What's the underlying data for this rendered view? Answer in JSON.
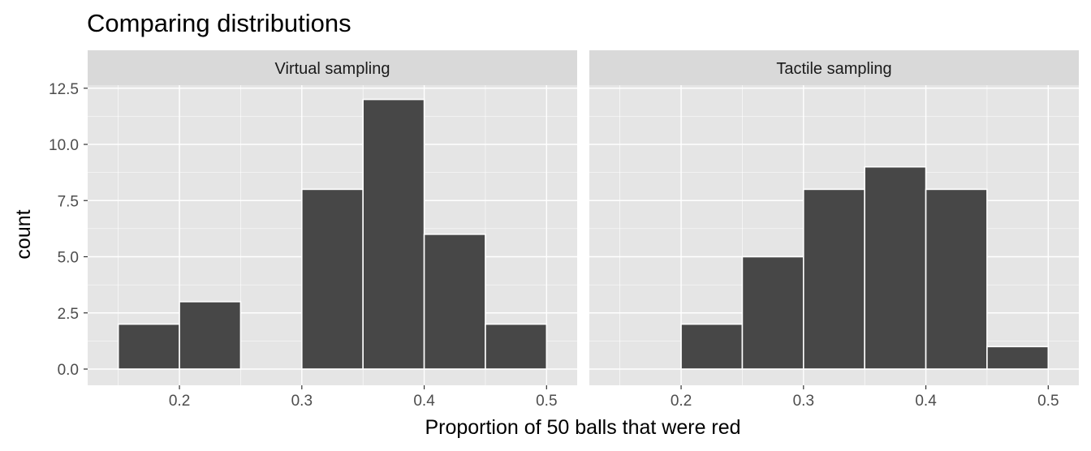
{
  "chart_data": {
    "type": "bar",
    "title": "Comparing distributions",
    "xlabel": "Proportion of 50 balls that were red",
    "ylabel": "count",
    "xlim": [
      0.125,
      0.525
    ],
    "ylim": [
      0,
      13.5
    ],
    "x_ticks": [
      0.2,
      0.3,
      0.4,
      0.5
    ],
    "x_tick_labels": [
      "0.2",
      "0.3",
      "0.4",
      "0.5"
    ],
    "y_ticks": [
      0,
      2.5,
      5,
      7.5,
      10,
      12.5
    ],
    "y_tick_labels": [
      "0.0",
      "2.5",
      "5.0",
      "7.5",
      "10.0",
      "12.5"
    ],
    "bin_width": 0.05,
    "grid": true,
    "colors": {
      "panel_background": "#e5e5e5",
      "strip_background": "#d9d9d9",
      "bar_fill": "#474747",
      "bar_outline": "#ffffff",
      "grid": "#ffffff"
    },
    "panels": [
      {
        "strip_label": "Virtual sampling",
        "bins": [
          {
            "x_start": 0.15,
            "x_end": 0.2,
            "count": 2
          },
          {
            "x_start": 0.2,
            "x_end": 0.25,
            "count": 3
          },
          {
            "x_start": 0.3,
            "x_end": 0.35,
            "count": 8
          },
          {
            "x_start": 0.35,
            "x_end": 0.4,
            "count": 12
          },
          {
            "x_start": 0.4,
            "x_end": 0.45,
            "count": 6
          },
          {
            "x_start": 0.45,
            "x_end": 0.5,
            "count": 2
          }
        ]
      },
      {
        "strip_label": "Tactile sampling",
        "bins": [
          {
            "x_start": 0.2,
            "x_end": 0.25,
            "count": 2
          },
          {
            "x_start": 0.25,
            "x_end": 0.3,
            "count": 5
          },
          {
            "x_start": 0.3,
            "x_end": 0.35,
            "count": 8
          },
          {
            "x_start": 0.35,
            "x_end": 0.4,
            "count": 9
          },
          {
            "x_start": 0.4,
            "x_end": 0.45,
            "count": 8
          },
          {
            "x_start": 0.45,
            "x_end": 0.5,
            "count": 1
          }
        ]
      }
    ]
  }
}
